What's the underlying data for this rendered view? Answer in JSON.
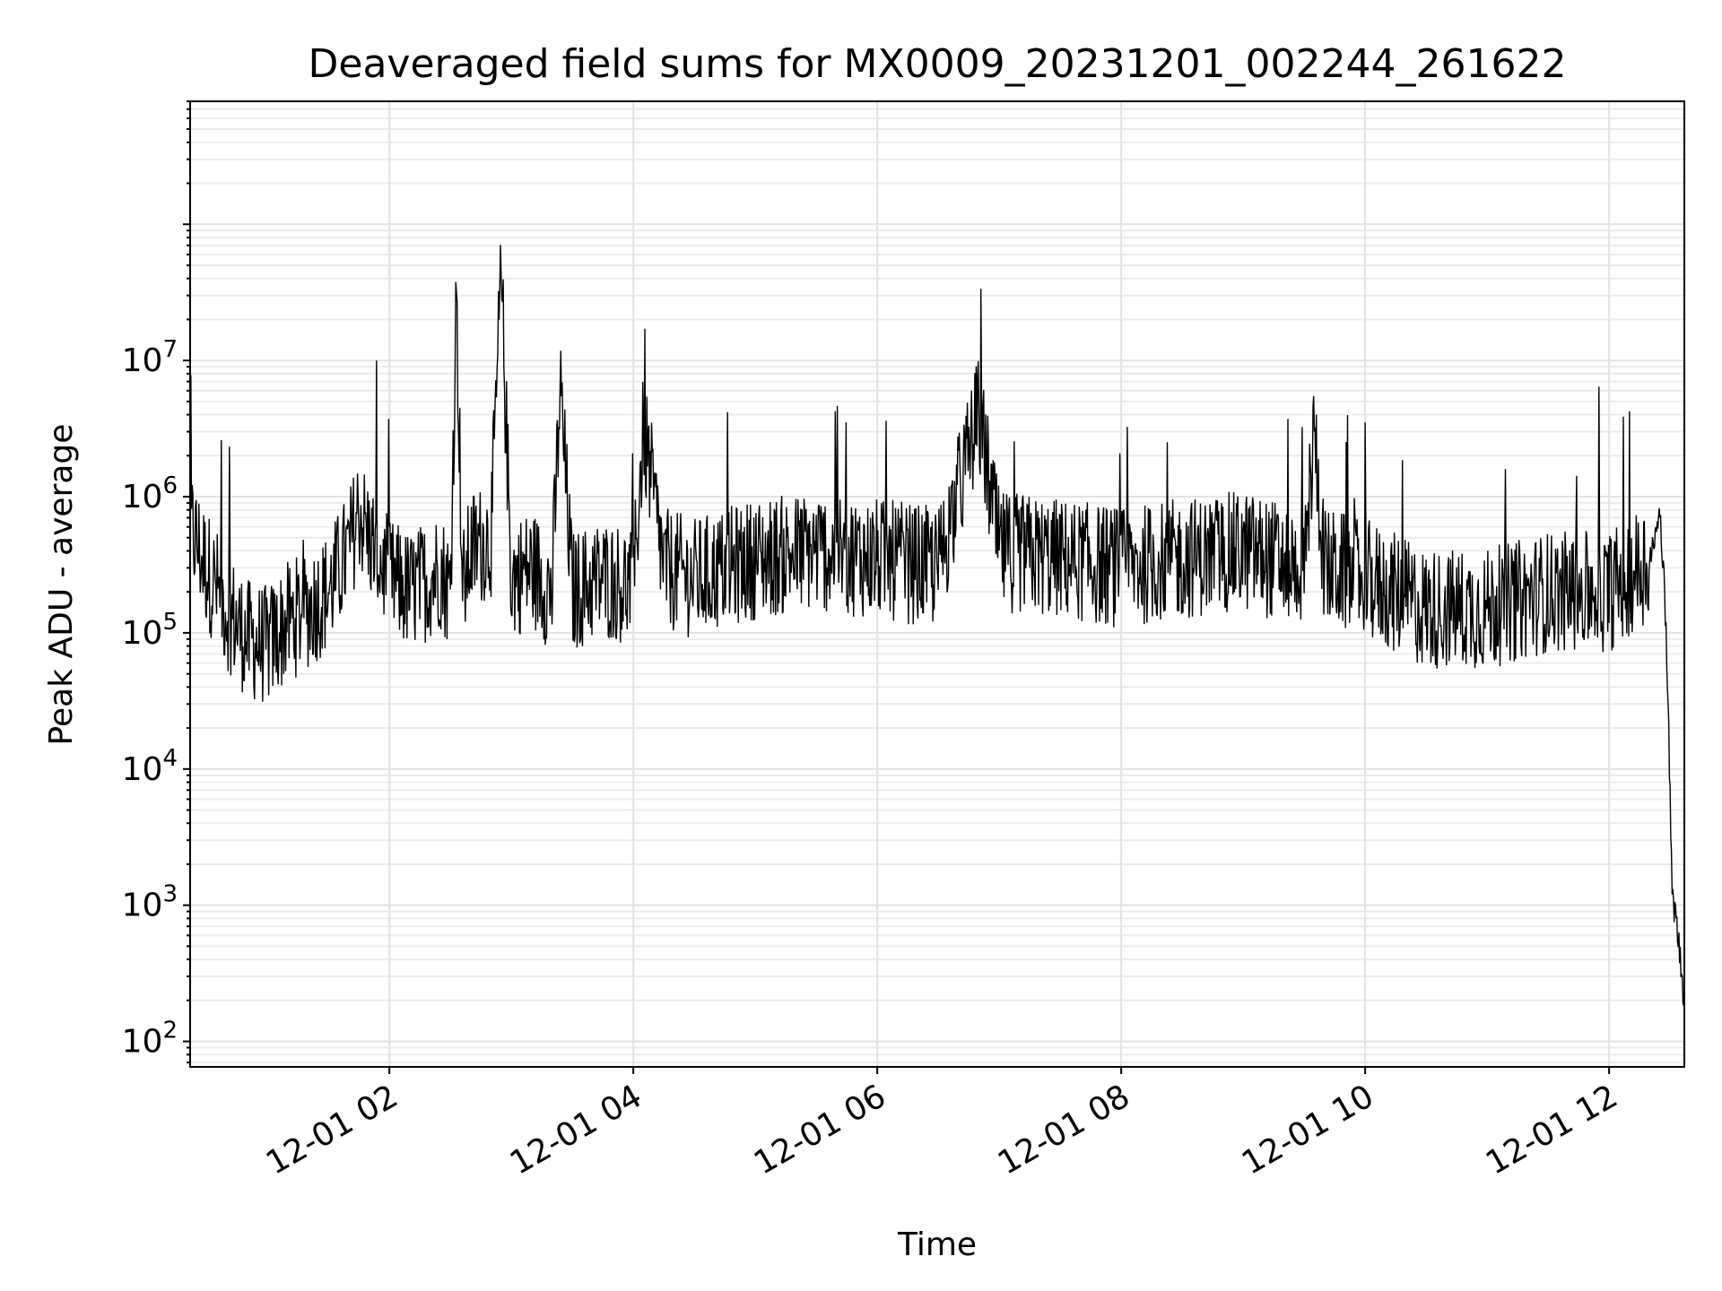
{
  "chart_data": {
    "type": "line",
    "title": "Deaveraged field sums for MX0009_20231201_002244_261622",
    "xlabel": "Time",
    "ylabel": "Peak ADU - average",
    "yscale": "log",
    "ylim": [
      65,
      800000000
    ],
    "xlim": [
      "2023-12-01 00:22",
      "2023-12-01 12:37"
    ],
    "grid": true,
    "x_ticks": [
      {
        "value": "2023-12-01 02:00",
        "label": "12-01 02"
      },
      {
        "value": "2023-12-01 04:00",
        "label": "12-01 04"
      },
      {
        "value": "2023-12-01 06:00",
        "label": "12-01 06"
      },
      {
        "value": "2023-12-01 08:00",
        "label": "12-01 08"
      },
      {
        "value": "2023-12-01 10:00",
        "label": "12-01 10"
      },
      {
        "value": "2023-12-01 12:00",
        "label": "12-01 12"
      }
    ],
    "y_ticks": [
      {
        "value": 100,
        "base": "10",
        "exp": "2"
      },
      {
        "value": 1000,
        "base": "10",
        "exp": "3"
      },
      {
        "value": 10000,
        "base": "10",
        "exp": "4"
      },
      {
        "value": 100000,
        "base": "10",
        "exp": "5"
      },
      {
        "value": 1000000,
        "base": "10",
        "exp": "6"
      },
      {
        "value": 10000000,
        "base": "10",
        "exp": "7"
      }
    ],
    "series": [
      {
        "color": "#000000",
        "x": [
          "2023-12-01 00:22",
          "2023-12-01 00:30",
          "2023-12-01 00:40",
          "2023-12-01 00:50",
          "2023-12-01 01:00",
          "2023-12-01 01:10",
          "2023-12-01 01:20",
          "2023-12-01 01:30",
          "2023-12-01 01:40",
          "2023-12-01 01:45",
          "2023-12-01 01:50",
          "2023-12-01 02:00",
          "2023-12-01 02:10",
          "2023-12-01 02:20",
          "2023-12-01 02:25",
          "2023-12-01 02:30",
          "2023-12-01 02:33",
          "2023-12-01 02:36",
          "2023-12-01 02:40",
          "2023-12-01 02:50",
          "2023-12-01 02:55",
          "2023-12-01 03:00",
          "2023-12-01 03:10",
          "2023-12-01 03:20",
          "2023-12-01 03:24",
          "2023-12-01 03:30",
          "2023-12-01 03:45",
          "2023-12-01 04:00",
          "2023-12-01 04:05",
          "2023-12-01 04:15",
          "2023-12-01 04:30",
          "2023-12-01 05:00",
          "2023-12-01 05:30",
          "2023-12-01 06:00",
          "2023-12-01 06:30",
          "2023-12-01 06:50",
          "2023-12-01 07:00",
          "2023-12-01 07:30",
          "2023-12-01 08:00",
          "2023-12-01 08:30",
          "2023-12-01 09:00",
          "2023-12-01 09:30",
          "2023-12-01 09:35",
          "2023-12-01 09:40",
          "2023-12-01 10:00",
          "2023-12-01 10:30",
          "2023-12-01 11:00",
          "2023-12-01 11:30",
          "2023-12-01 12:00",
          "2023-12-01 12:20",
          "2023-12-01 12:25",
          "2023-12-01 12:27",
          "2023-12-01 12:29",
          "2023-12-01 12:31",
          "2023-12-01 12:33",
          "2023-12-01 12:37"
        ],
        "values": [
          600000,
          300000,
          150000,
          90000,
          80000,
          120000,
          150000,
          200000,
          400000,
          800000,
          500000,
          250000,
          200000,
          250000,
          300000,
          200000,
          32000000,
          200000,
          400000,
          500000,
          42000000,
          250000,
          300000,
          200000,
          6500000,
          200000,
          250000,
          220000,
          3200000,
          300000,
          250000,
          350000,
          400000,
          350000,
          300000,
          4000000,
          400000,
          350000,
          300000,
          350000,
          400000,
          300000,
          3000000,
          300000,
          250000,
          150000,
          150000,
          200000,
          200000,
          350000,
          700000,
          300000,
          30000,
          1200,
          800,
          200
        ]
      }
    ]
  }
}
